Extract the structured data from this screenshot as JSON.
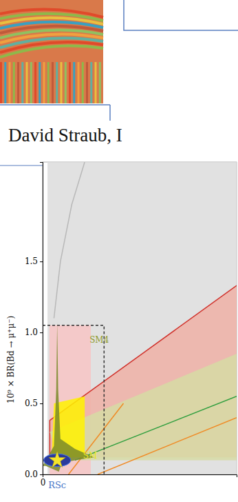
{
  "header": {
    "text": "David Straub, I"
  },
  "chart_data": {
    "type": "area",
    "y_label": "10⁹ × BR(Bd → μ⁺μ⁻)",
    "xlim": [
      0,
      6
    ],
    "xticks": [
      0
    ],
    "ylim": [
      0,
      2.2
    ],
    "yticks": [
      {
        "value": 0,
        "label": "0.0"
      },
      {
        "value": 0.5,
        "label": "0.5"
      },
      {
        "value": 1,
        "label": "1.0"
      },
      {
        "value": 1.5,
        "label": "1.5"
      }
    ],
    "grid": false,
    "series": [
      {
        "type": "area",
        "color": "#dcdcdc",
        "x": [
          0.15,
          6,
          6,
          0.15
        ],
        "values": [
          2.2,
          2.2,
          0,
          0
        ]
      },
      {
        "type": "line",
        "color": "#b8b8b8",
        "line_style": "solid",
        "x": [
          1.3,
          0.9,
          0.55,
          0.35
        ],
        "values": [
          2.2,
          1.9,
          1.5,
          1.1
        ]
      },
      {
        "type": "area",
        "color": "#f7c4c4",
        "x": [
          0.21,
          1.49,
          1.49,
          0.21
        ],
        "values": [
          0,
          0,
          1.05,
          1.05
        ]
      },
      {
        "type": "area",
        "color": "#eeb0a6",
        "x": [
          0.22,
          0.22,
          6,
          6
        ],
        "values": [
          0.12,
          0.38,
          1.33,
          0.12
        ]
      },
      {
        "type": "line",
        "color": "#d0302a",
        "line_style": "solid",
        "x": [
          0.22,
          0.22,
          6
        ],
        "values": [
          0.12,
          0.38,
          1.33
        ]
      },
      {
        "type": "area",
        "color": "#d6dba4",
        "x": [
          0.22,
          6,
          6,
          0.5
        ],
        "values": [
          0.3,
          0.85,
          0.1,
          0.1
        ]
      },
      {
        "type": "line",
        "color": "#2e9e3e",
        "line_style": "solid",
        "x": [
          1.0,
          6
        ],
        "values": [
          0.1,
          0.55
        ]
      },
      {
        "type": "line",
        "color": "#f08a24",
        "line_style": "solid",
        "x": [
          1.7,
          6
        ],
        "values": [
          0,
          0.4
        ]
      },
      {
        "type": "line",
        "color": "#f08a24",
        "line_style": "solid",
        "x": [
          0.8,
          2.5
        ],
        "values": [
          0,
          0.5
        ]
      },
      {
        "type": "area",
        "color": "#fff200",
        "x": [
          0.28,
          0.35,
          1.3,
          1.3
        ],
        "values": [
          0.12,
          0.5,
          0.55,
          0.12
        ]
      },
      {
        "type": "area",
        "color": "#7a8a2a",
        "x": [
          0,
          0.35,
          0.42,
          0.45,
          0.48,
          0.55,
          1.0,
          1.6,
          1.0,
          0.6,
          0.5,
          0.1
        ],
        "values": [
          0.06,
          0.2,
          0.6,
          1.07,
          0.6,
          0.25,
          0.18,
          0.12,
          0.1,
          0.08,
          0.02,
          0.06
        ]
      },
      {
        "type": "line",
        "color": "#333333",
        "line_style": "dashed",
        "x": [
          0,
          1.9,
          1.9
        ],
        "values": [
          1.05,
          1.05,
          0
        ]
      },
      {
        "type": "ellipse",
        "color": "#2a3a9c",
        "x": [
          0.45
        ],
        "values": [
          0.1
        ],
        "x_halfwidth": [
          0.42
        ],
        "y_halfwidth": [
          0.045
        ]
      },
      {
        "type": "scatter",
        "marker": "star",
        "color": "#f5e52a",
        "x": [
          0.45
        ],
        "values": [
          0.1
        ]
      }
    ],
    "annotations": [
      {
        "text": "SM4",
        "x": 1.45,
        "y": 0.93,
        "color": "#8f9a2a"
      },
      {
        "text": "SM",
        "x": 1.25,
        "y": 0.11,
        "color": "#e6e620"
      },
      {
        "text": "RSc",
        "x": 0.45,
        "color": "#4a78c8"
      }
    ]
  }
}
